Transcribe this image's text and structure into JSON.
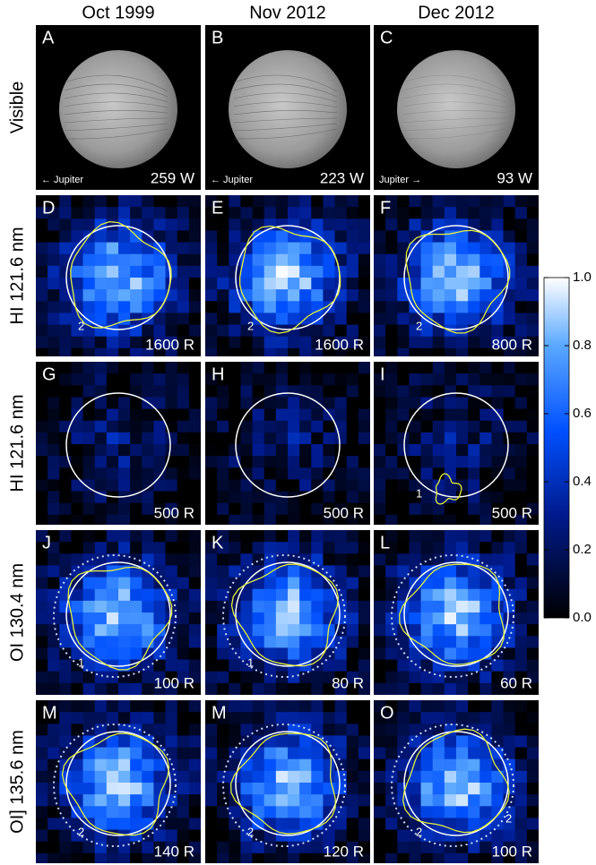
{
  "columns": [
    "Oct 1999",
    "Nov 2012",
    "Dec 2012"
  ],
  "rows": [
    {
      "label": "Visible",
      "panels": [
        {
          "letter": "A",
          "scale": "259 W",
          "jupiter": "← Jupiter"
        },
        {
          "letter": "B",
          "scale": "223 W",
          "jupiter": "← Jupiter"
        },
        {
          "letter": "C",
          "scale": "93 W",
          "jupiter": "Jupiter →"
        }
      ]
    },
    {
      "label": "HI 121.6 nm",
      "panels": [
        {
          "letter": "D",
          "scale": "1600 R",
          "contour_labels": [
            "2"
          ]
        },
        {
          "letter": "E",
          "scale": "1600 R",
          "contour_labels": [
            "2"
          ]
        },
        {
          "letter": "F",
          "scale": "800 R",
          "contour_labels": [
            "2"
          ]
        }
      ]
    },
    {
      "label": "HI 121.6 nm",
      "panels": [
        {
          "letter": "G",
          "scale": "500 R"
        },
        {
          "letter": "H",
          "scale": "500 R"
        },
        {
          "letter": "I",
          "scale": "500 R",
          "contour_labels": [
            "1"
          ]
        }
      ]
    },
    {
      "label": "OI 130.4 nm",
      "panels": [
        {
          "letter": "J",
          "scale": "100 R",
          "contour_labels": [
            "1"
          ]
        },
        {
          "letter": "K",
          "scale": "80 R",
          "contour_labels": [
            "1"
          ]
        },
        {
          "letter": "L",
          "scale": "60 R"
        }
      ]
    },
    {
      "label": "OI] 135.6 nm",
      "panels": [
        {
          "letter": "M",
          "scale": "140 R",
          "contour_labels": [
            "2"
          ]
        },
        {
          "letter": "M",
          "scale": "120 R",
          "contour_labels": [
            "2"
          ]
        },
        {
          "letter": "O",
          "scale": "100 R",
          "contour_labels": [
            "2",
            "2"
          ]
        }
      ]
    }
  ],
  "colorbar": {
    "ticks": [
      {
        "value": 1,
        "label": "1.0"
      },
      {
        "value": 0.8,
        "label": "0.8"
      },
      {
        "value": 0.6,
        "label": "0.6"
      },
      {
        "value": 0.4,
        "label": "0.4"
      },
      {
        "value": 0.2,
        "label": "0.2"
      },
      {
        "value": 0,
        "label": "0.0"
      }
    ]
  }
}
